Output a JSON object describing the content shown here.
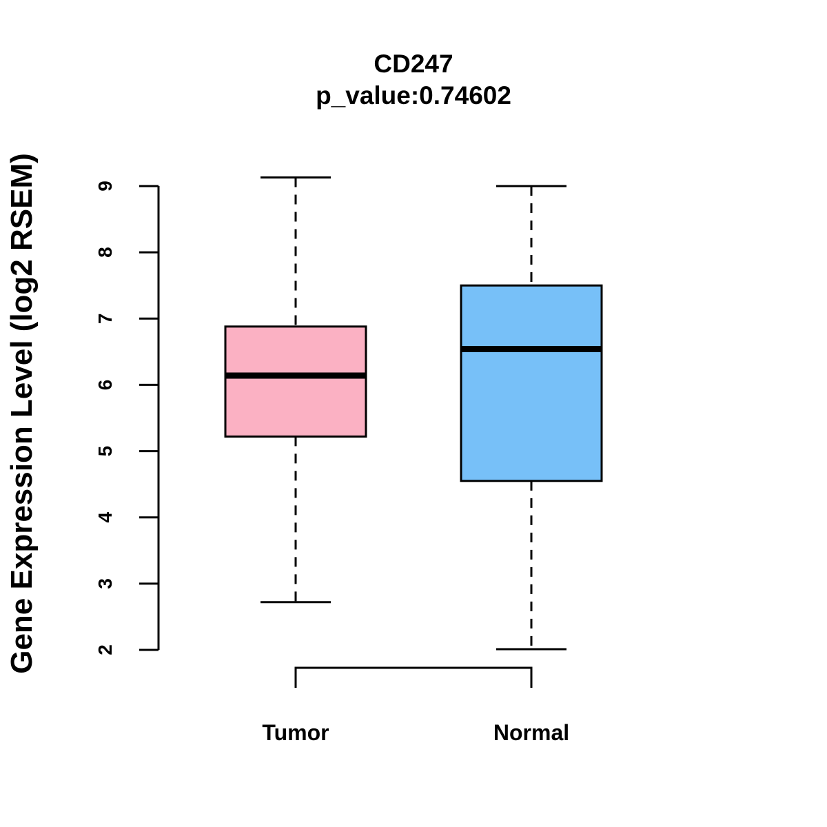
{
  "chart_data": {
    "type": "box",
    "title": "CD247",
    "subtitle": "p_value:0.74602",
    "xlabel": "",
    "ylabel": "Gene Expression Level (log2 RSEM)",
    "ylim": [
      2,
      9
    ],
    "yticks": [
      "2",
      "3",
      "4",
      "5",
      "6",
      "7",
      "8",
      "9"
    ],
    "categories": [
      "Tumor",
      "Normal"
    ],
    "series": [
      {
        "name": "Tumor",
        "min": 2.72,
        "q1": 5.22,
        "median": 6.14,
        "q3": 6.88,
        "max": 9.13,
        "color": "#FBB1C3"
      },
      {
        "name": "Normal",
        "min": 2.01,
        "q1": 4.55,
        "median": 6.54,
        "q3": 7.5,
        "max": 9.0,
        "color": "#77C0F8"
      }
    ],
    "comparison_bracket": [
      "Tumor",
      "Normal"
    ],
    "grid": false,
    "legend": "none"
  }
}
